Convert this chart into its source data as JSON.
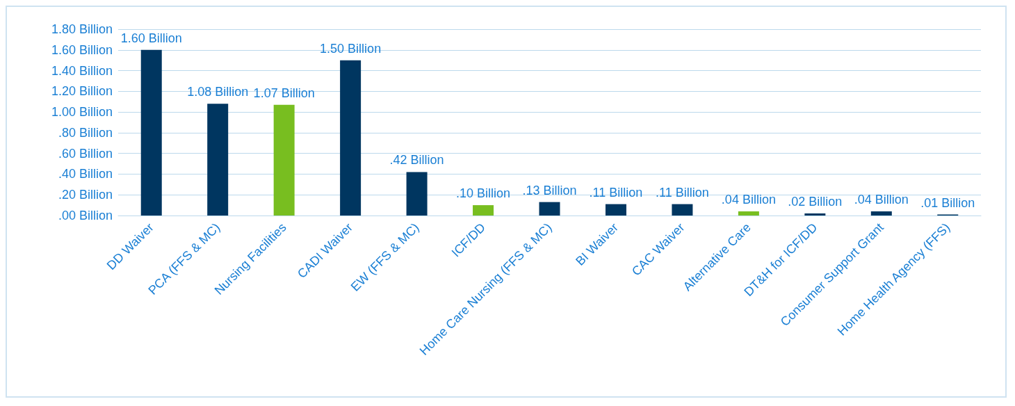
{
  "chart_data": {
    "type": "bar",
    "categories": [
      "DD Waiver",
      "PCA (FFS & MC)",
      "Nursing Facilities",
      "CADI Waiver",
      "EW (FFS & MC)",
      "ICF/DD",
      "Home Care Nursing (FFS & MC)",
      "BI Waiver",
      "CAC Waiver",
      "Alternative Care",
      "DT&H for ICF/DD",
      "Consumer Support Grant",
      "Home Health Agency (FFS)"
    ],
    "values": [
      1.6,
      1.08,
      1.07,
      1.5,
      0.42,
      0.1,
      0.13,
      0.11,
      0.11,
      0.04,
      0.02,
      0.04,
      0.01
    ],
    "colors": [
      "#003660",
      "#003660",
      "#78be20",
      "#003660",
      "#003660",
      "#78be20",
      "#003660",
      "#003660",
      "#003660",
      "#78be20",
      "#003660",
      "#003660",
      "#003660"
    ],
    "value_labels": [
      "1.60 Billion",
      "1.08 Billion",
      "1.07 Billion",
      "1.50 Billion",
      ".42 Billion",
      ".10 Billion",
      ".13 Billion",
      ".11 Billion",
      ".11 Billion",
      ".04 Billion",
      ".02 Billion",
      ".04 Billion",
      ".01 Billion"
    ],
    "ylim": [
      0,
      1.8
    ],
    "yticks": [
      {
        "value": 0,
        "label": ".00 Billion"
      },
      {
        "value": 0.2,
        "label": ".20 Billion"
      },
      {
        "value": 0.4,
        "label": ".40 Billion"
      },
      {
        "value": 0.6,
        "label": ".60 Billion"
      },
      {
        "value": 0.8,
        "label": ".80 Billion"
      },
      {
        "value": 1.0,
        "label": "1.00 Billion"
      },
      {
        "value": 1.2,
        "label": "1.20 Billion"
      },
      {
        "value": 1.4,
        "label": "1.40 Billion"
      },
      {
        "value": 1.6,
        "label": "1.60 Billion"
      },
      {
        "value": 1.8,
        "label": "1.80 Billion"
      }
    ],
    "grid": "y"
  }
}
